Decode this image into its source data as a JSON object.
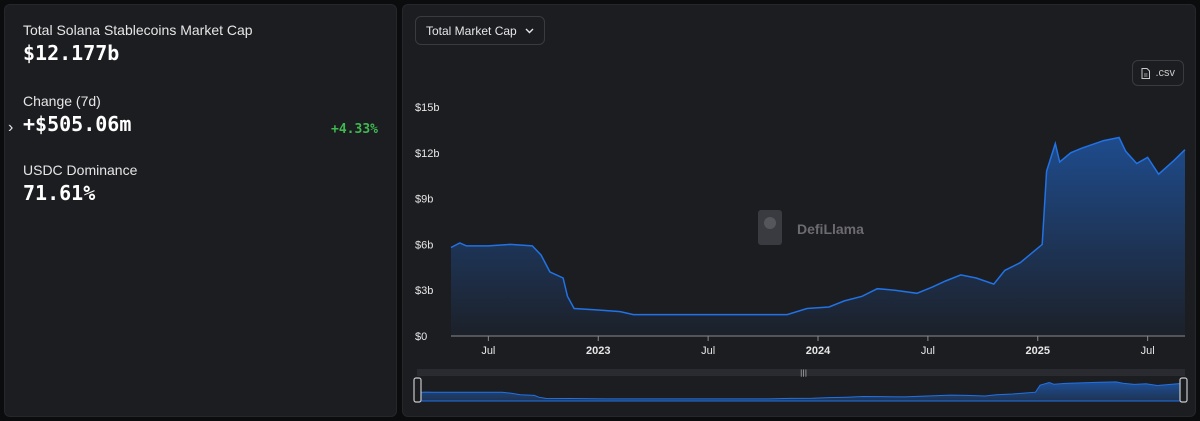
{
  "stats": {
    "market_cap_label": "Total Solana Stablecoins Market Cap",
    "market_cap_value": "$12.177b",
    "change_label": "Change (7d)",
    "change_value": "+$505.06m",
    "change_pct": "+4.33%",
    "dominance_label": "USDC Dominance",
    "dominance_value": "71.61%"
  },
  "controls": {
    "dropdown_label": "Total Market Cap",
    "csv_label": ".csv"
  },
  "watermark": "DefiLlama",
  "colors": {
    "accent": "#2172e5",
    "positive": "#3fb950"
  },
  "chart_data": {
    "type": "area",
    "ylim": [
      0,
      15
    ],
    "y_ticks": [
      "$0",
      "$3b",
      "$6b",
      "$9b",
      "$12b",
      "$15b"
    ],
    "x_ticks": [
      "Jul",
      "2023",
      "Jul",
      "2024",
      "Jul",
      "2025",
      "Jul"
    ],
    "x_tick_years": [
      false,
      true,
      false,
      true,
      false,
      true,
      false
    ],
    "series": [
      {
        "values": [
          [
            2022.33,
            5.8
          ],
          [
            2022.37,
            6.1
          ],
          [
            2022.4,
            5.9
          ],
          [
            2022.5,
            5.9
          ],
          [
            2022.6,
            6.0
          ],
          [
            2022.7,
            5.9
          ],
          [
            2022.74,
            5.3
          ],
          [
            2022.78,
            4.2
          ],
          [
            2022.84,
            3.8
          ],
          [
            2022.86,
            2.6
          ],
          [
            2022.89,
            1.8
          ],
          [
            2023.0,
            1.7
          ],
          [
            2023.1,
            1.6
          ],
          [
            2023.16,
            1.4
          ],
          [
            2023.3,
            1.4
          ],
          [
            2023.5,
            1.4
          ],
          [
            2023.7,
            1.4
          ],
          [
            2023.86,
            1.4
          ],
          [
            2023.95,
            1.8
          ],
          [
            2024.05,
            1.9
          ],
          [
            2024.12,
            2.3
          ],
          [
            2024.2,
            2.6
          ],
          [
            2024.27,
            3.1
          ],
          [
            2024.35,
            3.0
          ],
          [
            2024.45,
            2.8
          ],
          [
            2024.52,
            3.2
          ],
          [
            2024.58,
            3.6
          ],
          [
            2024.65,
            4.0
          ],
          [
            2024.72,
            3.8
          ],
          [
            2024.8,
            3.4
          ],
          [
            2024.85,
            4.3
          ],
          [
            2024.92,
            4.8
          ],
          [
            2024.97,
            5.4
          ],
          [
            2025.02,
            6.0
          ],
          [
            2025.04,
            10.8
          ],
          [
            2025.08,
            12.6
          ],
          [
            2025.1,
            11.4
          ],
          [
            2025.15,
            12.0
          ],
          [
            2025.2,
            12.3
          ],
          [
            2025.3,
            12.8
          ],
          [
            2025.37,
            13.0
          ],
          [
            2025.4,
            12.1
          ],
          [
            2025.45,
            11.3
          ],
          [
            2025.5,
            11.7
          ],
          [
            2025.55,
            10.6
          ],
          [
            2025.62,
            11.5
          ],
          [
            2025.67,
            12.2
          ]
        ]
      }
    ]
  }
}
